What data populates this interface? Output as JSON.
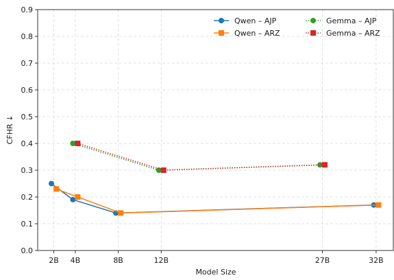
{
  "chart_data": {
    "type": "line",
    "xlabel": "Model Size",
    "ylabel": "CFHR ↓",
    "ylim": [
      0,
      0.9
    ],
    "yticks": [
      "0.0",
      "0.1",
      "0.2",
      "0.3",
      "0.4",
      "0.5",
      "0.6",
      "0.7",
      "0.8",
      "0.9"
    ],
    "xticks": [
      {
        "label": "2B",
        "value": 2
      },
      {
        "label": "4B",
        "value": 4
      },
      {
        "label": "8B",
        "value": 8
      },
      {
        "label": "12B",
        "value": 12
      },
      {
        "label": "27B",
        "value": 27
      },
      {
        "label": "32B",
        "value": 32
      }
    ],
    "grid": true,
    "legend": "top-right",
    "series": [
      {
        "name": "Qwen – AJP",
        "color": "#1f77b4",
        "marker": "circle",
        "line": "solid",
        "x": [
          2,
          4,
          8,
          32
        ],
        "values": [
          0.25,
          0.19,
          0.14,
          0.17
        ]
      },
      {
        "name": "Qwen – ARZ",
        "color": "#ff7f0e",
        "marker": "square",
        "line": "solid",
        "x": [
          2,
          4,
          8,
          32
        ],
        "values": [
          0.23,
          0.2,
          0.14,
          0.17
        ]
      },
      {
        "name": "Gemma – AJP",
        "color": "#2ca02c",
        "marker": "circle",
        "line": "dotted",
        "x": [
          4,
          12,
          27
        ],
        "values": [
          0.4,
          0.3,
          0.32
        ]
      },
      {
        "name": "Gemma – ARZ",
        "color": "#d62728",
        "marker": "square",
        "line": "dotted",
        "x": [
          4,
          12,
          27
        ],
        "values": [
          0.4,
          0.3,
          0.32
        ]
      }
    ]
  }
}
